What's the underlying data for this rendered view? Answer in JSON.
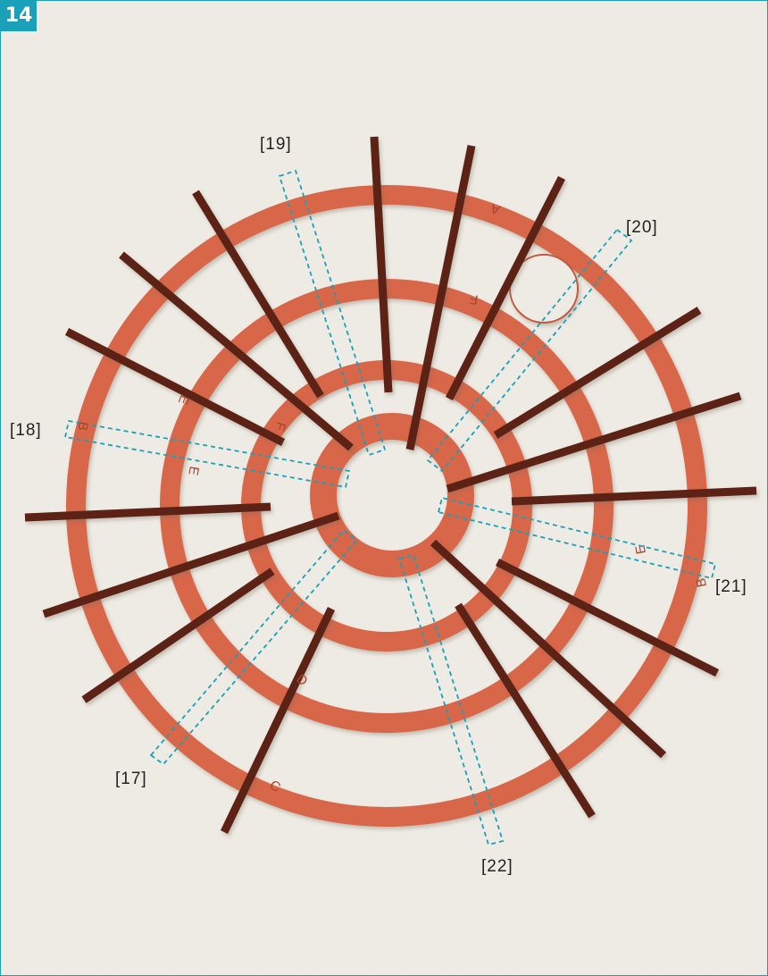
{
  "step": "14",
  "callouts": {
    "c17": "[17]",
    "c18": "[18]",
    "c19": "[19]",
    "c20": "[20]",
    "c21": "[21]",
    "c22": "[22]"
  },
  "ring_letters": {
    "outer": [
      "A",
      "B",
      "B",
      "C"
    ],
    "second": [
      "E",
      "E",
      "E",
      "D"
    ],
    "third": [
      "F",
      "F"
    ]
  },
  "colors": {
    "accent": "#1aa0b8",
    "background": "#eeebe4",
    "wood": "#d8664a",
    "rod": "#5c2418",
    "dashed_callout": "#1aa0b8"
  },
  "icons": {
    "photo": "wooden-ring-frame-photo"
  }
}
